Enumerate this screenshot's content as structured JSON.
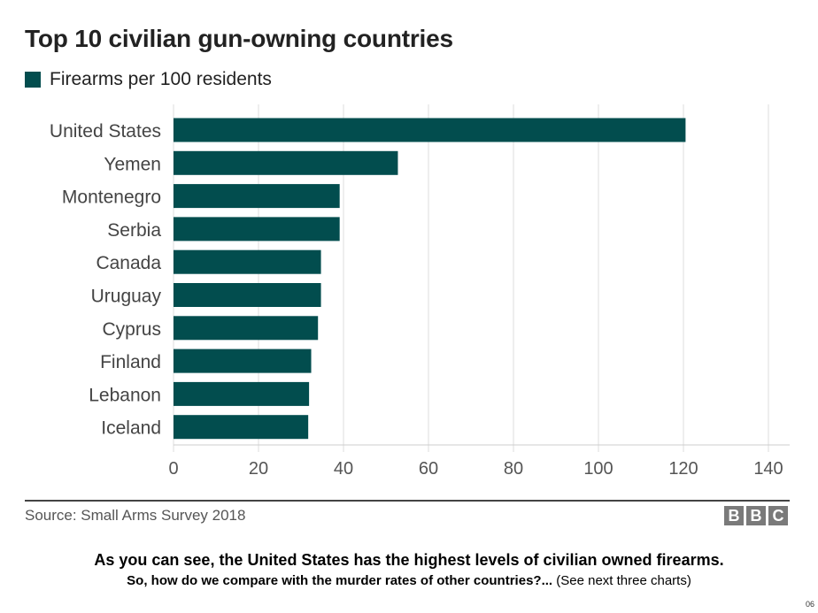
{
  "chart_data": {
    "type": "bar",
    "orientation": "horizontal",
    "title": "Top 10 civilian gun-owning countries",
    "legend": [
      {
        "name": "Firearms per 100 residents",
        "color": "#024d4e"
      }
    ],
    "legend_position": "top-left",
    "categories": [
      "United States",
      "Yemen",
      "Montenegro",
      "Serbia",
      "Canada",
      "Uruguay",
      "Cyprus",
      "Finland",
      "Lebanon",
      "Iceland"
    ],
    "series": [
      {
        "name": "Firearms per 100 residents",
        "values": [
          120.5,
          52.8,
          39.1,
          39.1,
          34.7,
          34.7,
          34.0,
          32.4,
          31.9,
          31.7
        ]
      }
    ],
    "xlabel": "",
    "ylabel": "",
    "xlim": [
      0,
      140
    ],
    "xticks": [
      0,
      20,
      40,
      60,
      80,
      100,
      120,
      140
    ],
    "grid": true,
    "bar_color": "#024d4e",
    "source": "Source: Small Arms Survey 2018",
    "logo": [
      "B",
      "B",
      "C"
    ]
  },
  "caption": {
    "line1": "As you can see, the United States has the highest levels of civilian owned firearms.",
    "line2_bold": "So, how do we compare with the murder rates of other countries?...",
    "line2_normal": " (See next three charts)"
  },
  "page_number": "06"
}
